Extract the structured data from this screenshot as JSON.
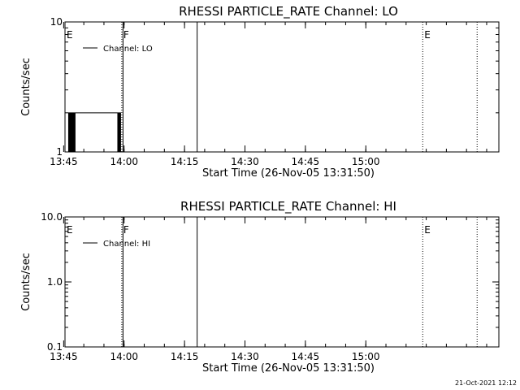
{
  "footer": {
    "timestamp": "21-Oct-2021 12:12"
  },
  "chart_data": [
    {
      "type": "line",
      "title": "RHESSI PARTICLE_RATE Channel: LO",
      "xlabel": "Start Time (26-Nov-05 13:31:50)",
      "ylabel": "Counts/sec",
      "yscale": "log",
      "ylim": [
        1,
        10
      ],
      "yticks": [
        1,
        10
      ],
      "ytick_labels": [
        "1",
        "10"
      ],
      "xlim_minutes": [
        13.5,
        121.2
      ],
      "xticks_minutes": [
        13.17,
        28.17,
        43.17,
        58.17,
        73.17,
        88.17
      ],
      "xtick_labels": [
        "13:45",
        "14:00",
        "14:15",
        "14:30",
        "14:45",
        "15:00"
      ],
      "legend": {
        "label": "Channel: LO",
        "position": "top-left"
      },
      "markers": [
        {
          "x": 13.5,
          "label": "E",
          "style": "dotted"
        },
        {
          "x": 27.6,
          "label": "F",
          "style": "dotted"
        },
        {
          "x": 27.9,
          "label": "",
          "style": "solid"
        },
        {
          "x": 46.3,
          "label": "",
          "style": "solid"
        },
        {
          "x": 102.3,
          "label": "E",
          "style": "dotted"
        },
        {
          "x": 115.8,
          "label": "",
          "style": "dotted"
        }
      ],
      "series": [
        {
          "name": "Channel: LO",
          "points": [
            [
              14.3,
              1
            ],
            [
              14.4,
              2
            ],
            [
              14.6,
              1
            ],
            [
              14.7,
              2
            ],
            [
              14.8,
              1
            ],
            [
              15.0,
              2
            ],
            [
              15.2,
              1
            ],
            [
              15.4,
              2
            ],
            [
              15.6,
              1
            ],
            [
              15.7,
              2
            ],
            [
              15.9,
              1
            ],
            [
              16.0,
              2
            ],
            [
              26.6,
              1
            ],
            [
              26.8,
              2
            ],
            [
              27.0,
              1
            ],
            [
              27.2,
              2
            ],
            [
              27.3,
              1
            ]
          ]
        }
      ]
    },
    {
      "type": "line",
      "title": "RHESSI PARTICLE_RATE Channel: HI",
      "xlabel": "Start Time (26-Nov-05 13:31:50)",
      "ylabel": "Counts/sec",
      "yscale": "log",
      "ylim": [
        0.1,
        10
      ],
      "yticks": [
        0.1,
        1,
        10
      ],
      "ytick_labels": [
        "0.1",
        "1.0",
        "10.0"
      ],
      "xlim_minutes": [
        13.5,
        121.2
      ],
      "xticks_minutes": [
        13.17,
        28.17,
        43.17,
        58.17,
        73.17,
        88.17
      ],
      "xtick_labels": [
        "13:45",
        "14:00",
        "14:15",
        "14:30",
        "14:45",
        "15:00"
      ],
      "legend": {
        "label": "Channel: HI",
        "position": "top-left"
      },
      "markers": [
        {
          "x": 13.5,
          "label": "E",
          "style": "dotted"
        },
        {
          "x": 27.6,
          "label": "F",
          "style": "dotted"
        },
        {
          "x": 27.9,
          "label": "",
          "style": "solid"
        },
        {
          "x": 46.3,
          "label": "",
          "style": "solid"
        },
        {
          "x": 102.3,
          "label": "E",
          "style": "dotted"
        },
        {
          "x": 115.8,
          "label": "",
          "style": "dotted"
        }
      ],
      "series": [
        {
          "name": "Channel: HI",
          "points": []
        }
      ]
    }
  ]
}
